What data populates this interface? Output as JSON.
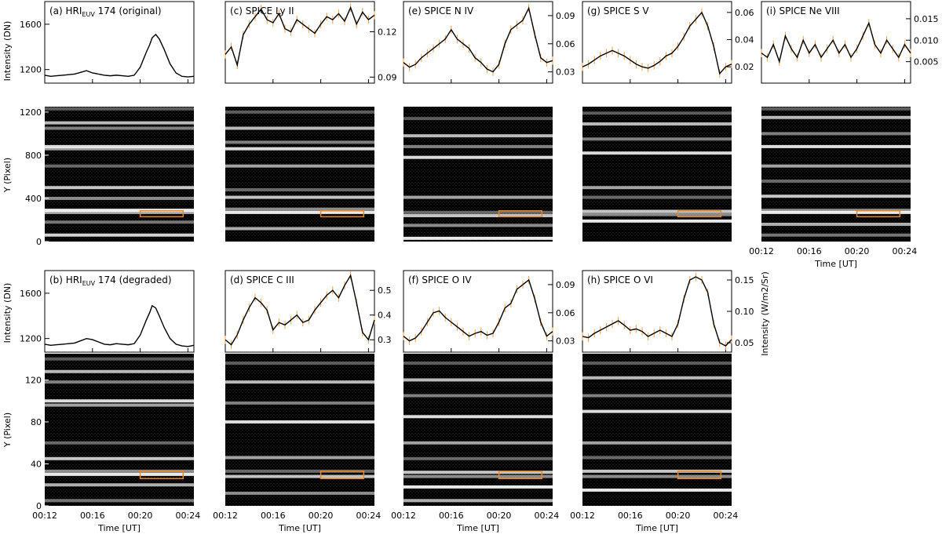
{
  "figure": {
    "time_axis_label": "Time [UT]",
    "time_ticks": [
      "00:12",
      "00:16",
      "00:20",
      "00:24"
    ],
    "left_ylabel_curve": "Intensity (DN)",
    "left_ylabel_map": "Y (Pixel)",
    "right_ylabel_curve": "Intensity (W/m2/Sr)",
    "colors": {
      "curve": "#000000",
      "error_bars": "#f0a040",
      "box": "#ee8822",
      "map_bg": "#000000"
    }
  },
  "chart_data": [
    {
      "id": "a",
      "type": "line",
      "title": "(a) HRI",
      "title_sub": "EUV",
      "title_suffix": " 174 (original)",
      "ylim": [
        1080,
        1800
      ],
      "yticks": [
        "1200",
        "1600"
      ],
      "error_bars": false,
      "axis_side": "left",
      "xlim": [
        0,
        12.5
      ],
      "x": [
        0,
        0.5,
        1,
        1.5,
        2,
        2.5,
        3,
        3.5,
        4,
        4.5,
        5,
        5.5,
        6,
        6.5,
        7,
        7.5,
        8,
        8.5,
        8.8,
        9,
        9.3,
        9.6,
        10,
        10.5,
        11,
        11.5,
        12,
        12.5
      ],
      "y": [
        1150,
        1140,
        1145,
        1150,
        1155,
        1160,
        1175,
        1190,
        1170,
        1160,
        1150,
        1145,
        1150,
        1145,
        1140,
        1150,
        1220,
        1350,
        1420,
        1480,
        1510,
        1470,
        1380,
        1250,
        1170,
        1140,
        1135,
        1140
      ]
    },
    {
      "id": "a-map",
      "type": "heatmap",
      "ylabel": "Y (Pixel)",
      "ylim": [
        0,
        1250
      ],
      "yticks": [
        "0",
        "400",
        "800",
        "1200"
      ],
      "box_time": [
        8.0,
        11.6
      ],
      "box_y": [
        230,
        285
      ],
      "bright_bands": [
        1230,
        1100,
        1050,
        880,
        860,
        700,
        500,
        400,
        290,
        270,
        180,
        60
      ]
    },
    {
      "id": "c",
      "type": "line",
      "title": "(c) SPICE Ly II",
      "ylim": [
        0.086,
        0.14
      ],
      "yticks": [
        "0.09",
        "0.12"
      ],
      "axis_side": "right",
      "error_bars": true,
      "xlim": [
        0,
        12.5
      ],
      "x": [
        0,
        0.5,
        1,
        1.5,
        2,
        2.5,
        3,
        3.5,
        4,
        4.5,
        5,
        5.5,
        6,
        6.5,
        7,
        7.5,
        8,
        8.5,
        9,
        9.5,
        10,
        10.5,
        11,
        11.5,
        12,
        12.5
      ],
      "y": [
        0.105,
        0.11,
        0.098,
        0.118,
        0.125,
        0.13,
        0.135,
        0.128,
        0.126,
        0.132,
        0.122,
        0.12,
        0.128,
        0.125,
        0.122,
        0.119,
        0.125,
        0.13,
        0.128,
        0.132,
        0.127,
        0.136,
        0.125,
        0.133,
        0.128,
        0.131
      ]
    },
    {
      "id": "c-map",
      "type": "heatmap",
      "box_time": [
        8.0,
        11.6
      ],
      "box_y": [
        230,
        285
      ],
      "bright_bands": [
        1200,
        1050,
        920,
        860,
        700,
        480,
        410,
        300,
        270,
        120
      ]
    },
    {
      "id": "e",
      "type": "line",
      "title": "(e) SPICE N IV",
      "ylim": [
        0.018,
        0.105
      ],
      "yticks": [
        "0.03",
        "0.06",
        "0.09"
      ],
      "axis_side": "right",
      "error_bars": true,
      "xlim": [
        0,
        12.5
      ],
      "x": [
        0,
        0.5,
        1,
        1.5,
        2,
        2.5,
        3,
        3.5,
        4,
        4.5,
        5,
        5.5,
        6,
        6.5,
        7,
        7.5,
        8,
        8.5,
        9,
        9.5,
        10,
        10.5,
        11,
        11.5,
        12,
        12.5
      ],
      "y": [
        0.04,
        0.035,
        0.038,
        0.045,
        0.05,
        0.055,
        0.06,
        0.065,
        0.075,
        0.065,
        0.06,
        0.055,
        0.045,
        0.04,
        0.033,
        0.03,
        0.038,
        0.06,
        0.075,
        0.08,
        0.085,
        0.098,
        0.07,
        0.045,
        0.04,
        0.042
      ]
    },
    {
      "id": "e-map",
      "type": "heatmap",
      "box_time": [
        8.0,
        11.6
      ],
      "box_y": [
        230,
        285
      ],
      "bright_bands": [
        1140,
        980,
        880,
        780,
        410,
        270,
        240,
        150,
        30
      ]
    },
    {
      "id": "g",
      "type": "line",
      "title": "(g) SPICE S V",
      "ylim": [
        0.008,
        0.068
      ],
      "yticks": [
        "0.02",
        "0.04",
        "0.06"
      ],
      "axis_side": "right",
      "error_bars": true,
      "xlim": [
        0,
        12.5
      ],
      "x": [
        0,
        0.5,
        1,
        1.5,
        2,
        2.5,
        3,
        3.5,
        4,
        4.5,
        5,
        5.5,
        6,
        6.5,
        7,
        7.5,
        8,
        8.5,
        9,
        9.5,
        10,
        10.5,
        11,
        11.5,
        12,
        12.5
      ],
      "y": [
        0.02,
        0.022,
        0.025,
        0.028,
        0.03,
        0.032,
        0.03,
        0.028,
        0.025,
        0.022,
        0.02,
        0.019,
        0.021,
        0.024,
        0.028,
        0.03,
        0.035,
        0.042,
        0.05,
        0.055,
        0.06,
        0.05,
        0.035,
        0.015,
        0.02,
        0.022
      ]
    },
    {
      "id": "g-map",
      "type": "heatmap",
      "box_time": [
        8.0,
        11.6
      ],
      "box_y": [
        230,
        285
      ],
      "bright_bands": [
        1190,
        1090,
        950,
        820,
        500,
        410,
        280,
        250,
        190
      ]
    },
    {
      "id": "i",
      "type": "line",
      "title": "(i) SPICE Ne VIII",
      "ylim": [
        0.0,
        0.019
      ],
      "yticks": [
        "0.005",
        "0.010",
        "0.015"
      ],
      "axis_side": "right",
      "error_bars": true,
      "xlim": [
        0,
        12.5
      ],
      "x": [
        0,
        0.5,
        1,
        1.5,
        2,
        2.5,
        3,
        3.5,
        4,
        4.5,
        5,
        5.5,
        6,
        6.5,
        7,
        7.5,
        8,
        8.5,
        9,
        9.5,
        10,
        10.5,
        11,
        11.5,
        12,
        12.5
      ],
      "y": [
        0.007,
        0.006,
        0.009,
        0.005,
        0.011,
        0.008,
        0.006,
        0.01,
        0.007,
        0.009,
        0.006,
        0.008,
        0.01,
        0.007,
        0.009,
        0.006,
        0.008,
        0.011,
        0.014,
        0.009,
        0.007,
        0.01,
        0.008,
        0.006,
        0.009,
        0.007
      ]
    },
    {
      "id": "i-map",
      "type": "heatmap",
      "time_label": true,
      "box_time": [
        8.0,
        11.6
      ],
      "box_y": [
        230,
        285
      ],
      "bright_bands": [
        1230,
        1150,
        1000,
        880,
        700,
        560,
        420,
        290,
        270,
        160,
        60
      ]
    },
    {
      "id": "b",
      "type": "line",
      "title": "(b) HRI",
      "title_sub": "EUV",
      "title_suffix": " 174 (degraded)",
      "ylim": [
        1080,
        1800
      ],
      "yticks": [
        "1200",
        "1600"
      ],
      "error_bars": false,
      "axis_side": "left",
      "xlim": [
        0,
        12.5
      ],
      "x": [
        0,
        0.5,
        1,
        1.5,
        2,
        2.5,
        3,
        3.5,
        4,
        4.5,
        5,
        5.5,
        6,
        6.5,
        7,
        7.5,
        8,
        8.5,
        8.8,
        9,
        9.3,
        9.6,
        10,
        10.5,
        11,
        11.5,
        12,
        12.5
      ],
      "y": [
        1150,
        1140,
        1145,
        1150,
        1155,
        1160,
        1180,
        1200,
        1190,
        1170,
        1150,
        1145,
        1155,
        1150,
        1145,
        1155,
        1230,
        1360,
        1430,
        1490,
        1470,
        1400,
        1300,
        1200,
        1150,
        1135,
        1130,
        1140
      ]
    },
    {
      "id": "b-map",
      "type": "heatmap",
      "ylabel": "Y (Pixel)",
      "ylim": [
        0,
        145
      ],
      "yticks": [
        "0",
        "40",
        "80",
        "120"
      ],
      "box_time": [
        8.0,
        11.6
      ],
      "box_y": [
        26,
        33
      ],
      "time_label": true,
      "bright_bands": [
        140,
        128,
        118,
        100,
        96,
        60,
        45,
        33,
        30,
        20,
        5
      ]
    },
    {
      "id": "d",
      "type": "line",
      "title": "(d) SPICE C III",
      "ylim": [
        0.25,
        0.58
      ],
      "yticks": [
        "0.3",
        "0.4",
        "0.5"
      ],
      "axis_side": "right",
      "error_bars": true,
      "xlim": [
        0,
        12.5
      ],
      "x": [
        0,
        0.5,
        1,
        1.5,
        2,
        2.5,
        3,
        3.5,
        4,
        4.5,
        5,
        5.5,
        6,
        6.5,
        7,
        7.5,
        8,
        8.5,
        9,
        9.5,
        10,
        10.5,
        11,
        11.5,
        12,
        12.5
      ],
      "y": [
        0.3,
        0.28,
        0.32,
        0.38,
        0.43,
        0.47,
        0.45,
        0.42,
        0.34,
        0.37,
        0.36,
        0.38,
        0.4,
        0.37,
        0.38,
        0.42,
        0.45,
        0.48,
        0.5,
        0.47,
        0.52,
        0.56,
        0.45,
        0.33,
        0.3,
        0.38
      ]
    },
    {
      "id": "d-map",
      "type": "heatmap",
      "time_label": true,
      "box_time": [
        8.0,
        11.6
      ],
      "box_y": [
        26,
        33
      ],
      "bright_bands": [
        136,
        118,
        98,
        80,
        46,
        33,
        28,
        12
      ]
    },
    {
      "id": "f",
      "type": "line",
      "title": "(f) SPICE O IV",
      "ylim": [
        0.018,
        0.105
      ],
      "yticks": [
        "0.03",
        "0.06",
        "0.09"
      ],
      "axis_side": "right",
      "error_bars": true,
      "xlim": [
        0,
        12.5
      ],
      "x": [
        0,
        0.5,
        1,
        1.5,
        2,
        2.5,
        3,
        3.5,
        4,
        4.5,
        5,
        5.5,
        6,
        6.5,
        7,
        7.5,
        8,
        8.5,
        9,
        9.5,
        10,
        10.5,
        11,
        11.5,
        12,
        12.5
      ],
      "y": [
        0.035,
        0.03,
        0.033,
        0.04,
        0.05,
        0.06,
        0.062,
        0.055,
        0.05,
        0.045,
        0.04,
        0.035,
        0.038,
        0.04,
        0.036,
        0.038,
        0.05,
        0.065,
        0.07,
        0.085,
        0.09,
        0.095,
        0.075,
        0.05,
        0.035,
        0.04
      ]
    },
    {
      "id": "f-map",
      "type": "heatmap",
      "time_label": true,
      "box_time": [
        8.0,
        11.6
      ],
      "box_y": [
        26,
        33
      ],
      "bright_bands": [
        136,
        120,
        105,
        85,
        60,
        45,
        32,
        28,
        18,
        5
      ]
    },
    {
      "id": "h",
      "type": "line",
      "title": "(h) SPICE O VI",
      "ylim": [
        0.035,
        0.165
      ],
      "yticks": [
        "0.05",
        "0.10",
        "0.15"
      ],
      "axis_side": "right",
      "error_bars": true,
      "xlim": [
        0,
        12.5
      ],
      "x": [
        0,
        0.5,
        1,
        1.5,
        2,
        2.5,
        3,
        3.5,
        4,
        4.5,
        5,
        5.5,
        6,
        6.5,
        7,
        7.5,
        8,
        8.5,
        9,
        9.5,
        10,
        10.5,
        11,
        11.5,
        12,
        12.5
      ],
      "y": [
        0.06,
        0.058,
        0.065,
        0.07,
        0.075,
        0.08,
        0.085,
        0.078,
        0.07,
        0.072,
        0.068,
        0.06,
        0.065,
        0.07,
        0.065,
        0.06,
        0.08,
        0.12,
        0.15,
        0.155,
        0.15,
        0.13,
        0.08,
        0.05,
        0.045,
        0.055
      ]
    },
    {
      "id": "h-map",
      "type": "heatmap",
      "time_label": true,
      "box_time": [
        8.0,
        11.6
      ],
      "box_y": [
        26,
        33
      ],
      "bright_bands": [
        136,
        122,
        105,
        90,
        60,
        46,
        33,
        28,
        15
      ]
    }
  ]
}
